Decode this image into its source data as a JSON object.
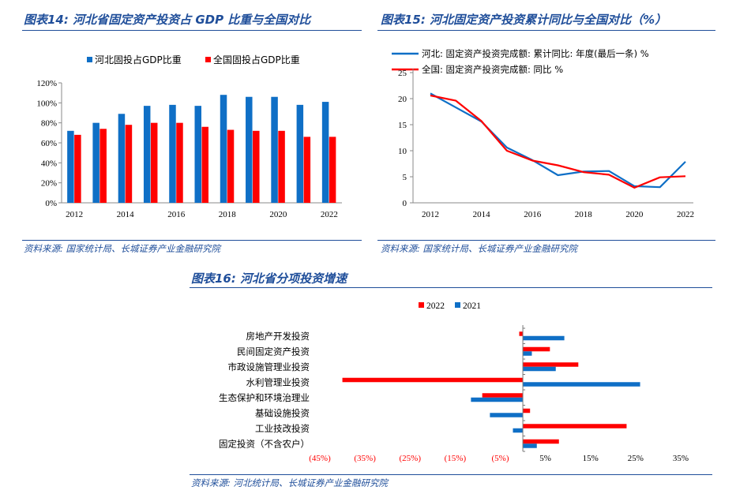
{
  "panels": {
    "p14": {
      "title": "图表14:  河北省固定资产投资占 GDP 比重与全国对比",
      "source": "资料来源:  国家统计局、长城证券产业金融研究院"
    },
    "p15": {
      "title": "图表15:  河北固定资产投资累计同比与全国对比（%）",
      "source": "资料来源:  国家统计局、长城证券产业金融研究院"
    },
    "p16": {
      "title": "图表16:  河北省分项投资增速",
      "source": "资料来源:  河北统计局、长城证券产业金融研究院"
    }
  },
  "chart_data": [
    {
      "type": "bar",
      "categories": [
        "2012",
        "2013",
        "2014",
        "2015",
        "2016",
        "2017",
        "2018",
        "2019",
        "2020",
        "2021",
        "2022"
      ],
      "x_tick_labels": [
        "2012",
        "2014",
        "2016",
        "2018",
        "2020",
        "2022"
      ],
      "y_tick_labels": [
        "0%",
        "20%",
        "40%",
        "60%",
        "80%",
        "100%",
        "120%"
      ],
      "ylim": [
        0,
        120
      ],
      "series": [
        {
          "name": "河北固投占GDP比重",
          "color": "#0F6FC6",
          "values": [
            72,
            80,
            89,
            97,
            98,
            97,
            108,
            106,
            106,
            98,
            101
          ]
        },
        {
          "name": "全国固投占GDP比重",
          "color": "#FF0000",
          "values": [
            68,
            74,
            78,
            80,
            80,
            76,
            73,
            72,
            72,
            66,
            66
          ]
        }
      ],
      "legend": "top"
    },
    {
      "type": "line",
      "x": [
        2012,
        2013,
        2014,
        2015,
        2016,
        2017,
        2018,
        2019,
        2020,
        2021,
        2022
      ],
      "x_tick_labels": [
        "2012",
        "2014",
        "2016",
        "2018",
        "2020",
        "2022"
      ],
      "y_tick_labels": [
        "0",
        "5",
        "10",
        "15",
        "20",
        "25"
      ],
      "ylim": [
        0,
        25
      ],
      "series": [
        {
          "name": "河北: 固定资产投资完成额: 累计同比:  年度(最后一条)   %",
          "color": "#0F6FC6",
          "values": [
            21.0,
            18.3,
            15.6,
            10.6,
            8.2,
            5.3,
            6.0,
            6.1,
            3.2,
            3.0,
            7.9
          ]
        },
        {
          "name": "全国:  固定资产投资完成额: 同比 %",
          "color": "#FF0000",
          "values": [
            20.6,
            19.6,
            15.7,
            10.0,
            8.1,
            7.2,
            5.9,
            5.4,
            2.9,
            4.9,
            5.1
          ]
        }
      ],
      "legend": "top-left"
    },
    {
      "type": "bar",
      "orientation": "horizontal",
      "categories": [
        "房地产开发投资",
        "民间固定资产投资",
        "市政设施管理业投资",
        "水利管理业投资",
        "生态保护和环境治理业",
        "基础设施投资",
        "工业技改投资",
        "固定投资（不含农户）"
      ],
      "x_tick_labels": [
        "(45%)",
        "(35%)",
        "(25%)",
        "(15%)",
        "(5%)",
        "5%",
        "15%",
        "25%",
        "35%"
      ],
      "xlim": [
        -45,
        35
      ],
      "series": [
        {
          "name": "2022",
          "color": "#FF0000",
          "values": [
            -0.8,
            6.0,
            12.3,
            -40.0,
            -9.0,
            1.6,
            23.0,
            8.0
          ]
        },
        {
          "name": "2021",
          "color": "#0F6FC6",
          "values": [
            9.2,
            2.0,
            7.3,
            26.0,
            -11.5,
            -7.3,
            -2.2,
            3.1
          ]
        }
      ],
      "legend": "top"
    }
  ]
}
